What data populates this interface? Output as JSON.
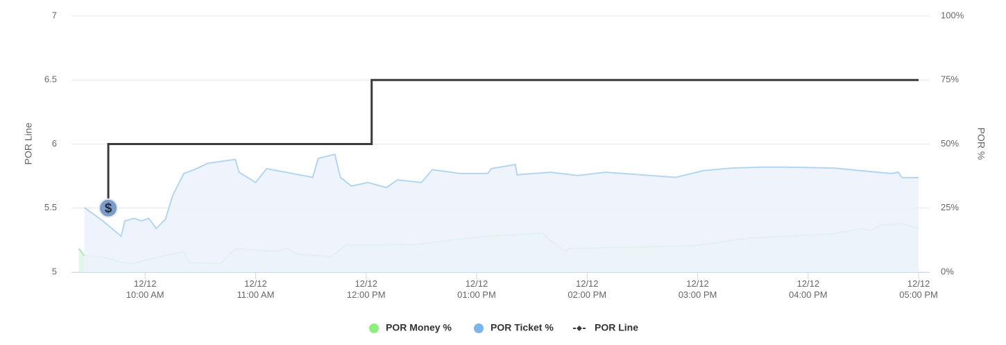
{
  "chart_data": {
    "type": "line",
    "y_label": "POR Line",
    "y2_label": "POR %",
    "xlim": [
      "12/12 09:20 AM",
      "12/12 05:06 PM"
    ],
    "xticks": [
      {
        "value": "12/12 10:00 AM",
        "label": [
          "12/12",
          "10:00 AM"
        ]
      },
      {
        "value": "12/12 11:00 AM",
        "label": [
          "12/12",
          "11:00 AM"
        ]
      },
      {
        "value": "12/12 12:00 PM",
        "label": [
          "12/12",
          "12:00 PM"
        ]
      },
      {
        "value": "12/12 01:00 PM",
        "label": [
          "12/12",
          "01:00 PM"
        ]
      },
      {
        "value": "12/12 02:00 PM",
        "label": [
          "12/12",
          "02:00 PM"
        ]
      },
      {
        "value": "12/12 03:00 PM",
        "label": [
          "12/12",
          "03:00 PM"
        ]
      },
      {
        "value": "12/12 04:00 PM",
        "label": [
          "12/12",
          "04:00 PM"
        ]
      },
      {
        "value": "12/12 05:00 PM",
        "label": [
          "12/12",
          "05:00 PM"
        ]
      }
    ],
    "ylim": [
      5,
      7
    ],
    "yticks": [
      5,
      5.5,
      6,
      6.5,
      7
    ],
    "y2lim": [
      0,
      100
    ],
    "y2ticks": [
      {
        "value": 0,
        "label": "0%"
      },
      {
        "value": 25,
        "label": "25%"
      },
      {
        "value": 50,
        "label": "50%"
      },
      {
        "value": 75,
        "label": "75%"
      },
      {
        "value": 100,
        "label": "100%"
      }
    ],
    "grid": true,
    "series": [
      {
        "name": "POR Money %",
        "color": "#aee5b4",
        "fill": "#e2f3e6",
        "legend_color": "#90ed7d",
        "axis": "y2",
        "x": [
          "12/12 09:24 AM",
          "12/12 09:27 AM",
          "12/12 09:37 AM",
          "12/12 09:47 AM",
          "12/12 09:54 AM",
          "12/12 10:04 AM",
          "12/12 10:21 AM",
          "12/12 10:24 AM",
          "12/12 10:41 AM",
          "12/12 10:49 AM",
          "12/12 11:11 AM",
          "12/12 11:17 AM",
          "12/12 11:23 AM",
          "12/12 11:41 AM",
          "12/12 11:49 AM",
          "12/12 12:06 PM",
          "12/12 12:27 PM",
          "12/12 12:49 PM",
          "12/12 01:04 PM",
          "12/12 01:36 PM",
          "12/12 01:40 PM",
          "12/12 01:48 PM",
          "12/12 01:50 PM",
          "12/12 02:58 PM",
          "12/12 03:28 PM",
          "12/12 04:14 PM",
          "12/12 04:29 PM",
          "12/12 04:34 PM",
          "12/12 04:40 PM",
          "12/12 04:51 PM",
          "12/12 05:00 PM"
        ],
        "values": [
          9.2,
          6.5,
          6,
          3.8,
          3.3,
          5.4,
          8,
          3.8,
          3.3,
          9.2,
          8.1,
          9.2,
          7,
          6,
          10.6,
          10.6,
          10.8,
          12.7,
          14,
          15.2,
          12.5,
          8.1,
          9.2,
          10.3,
          13.3,
          15,
          17,
          16.3,
          18.4,
          19,
          17
        ]
      },
      {
        "name": "POR Ticket %",
        "color": "#b2d6ef",
        "fill": "#ecf2fb",
        "legend_color": "#7cb5ec",
        "axis": "y2",
        "x": [
          "12/12 09:27 AM",
          "12/12 09:37 AM",
          "12/12 09:47 AM",
          "12/12 09:49 AM",
          "12/12 09:54 AM",
          "12/12 09:58 AM",
          "12/12 10:02 AM",
          "12/12 10:06 AM",
          "12/12 10:11 AM",
          "12/12 10:15 AM",
          "12/12 10:21 AM",
          "12/12 10:28 AM",
          "12/12 10:34 AM",
          "12/12 10:49 AM",
          "12/12 10:51 AM",
          "12/12 11:00 AM",
          "12/12 11:06 AM",
          "12/12 11:31 AM",
          "12/12 11:34 AM",
          "12/12 11:43 AM",
          "12/12 11:46 AM",
          "12/12 11:52 AM",
          "12/12 12:01 PM",
          "12/12 12:11 PM",
          "12/12 12:17 PM",
          "12/12 12:30 PM",
          "12/12 12:36 PM",
          "12/12 12:51 PM",
          "12/12 01:06 PM",
          "12/12 01:08 PM",
          "12/12 01:21 PM",
          "12/12 01:22 PM",
          "12/12 01:40 PM",
          "12/12 01:55 PM",
          "12/12 02:10 PM",
          "12/12 02:48 PM",
          "12/12 03:03 PM",
          "12/12 03:18 PM",
          "12/12 03:35 PM",
          "12/12 03:48 PM",
          "12/12 04:14 PM",
          "12/12 04:45 PM",
          "12/12 04:49 PM",
          "12/12 04:51 PM",
          "12/12 05:00 PM"
        ],
        "values": [
          25.2,
          20,
          14,
          20,
          21,
          20,
          21,
          17,
          20.6,
          30,
          38.5,
          40.4,
          42.5,
          44,
          39,
          35,
          40.4,
          37,
          44.4,
          46,
          37,
          33.6,
          35,
          33,
          36,
          35,
          40,
          38.5,
          38.5,
          40.4,
          42,
          38,
          39,
          37.7,
          39,
          37,
          39.6,
          40.6,
          41,
          41,
          40.6,
          38.5,
          39,
          36.9,
          36.9
        ]
      },
      {
        "name": "POR Line",
        "color": "#3a3a3c",
        "axis": "y",
        "x": [
          "12/12 09:40 AM",
          "12/12 09:40 AM",
          "12/12 12:03 PM",
          "12/12 12:03 PM",
          "12/12 05:00 PM"
        ],
        "values": [
          5.5,
          6,
          6,
          6.5,
          6.5
        ]
      }
    ],
    "annotations": [
      {
        "text": "$",
        "x": "12/12 09:40 AM",
        "y": 5.5
      }
    ]
  }
}
